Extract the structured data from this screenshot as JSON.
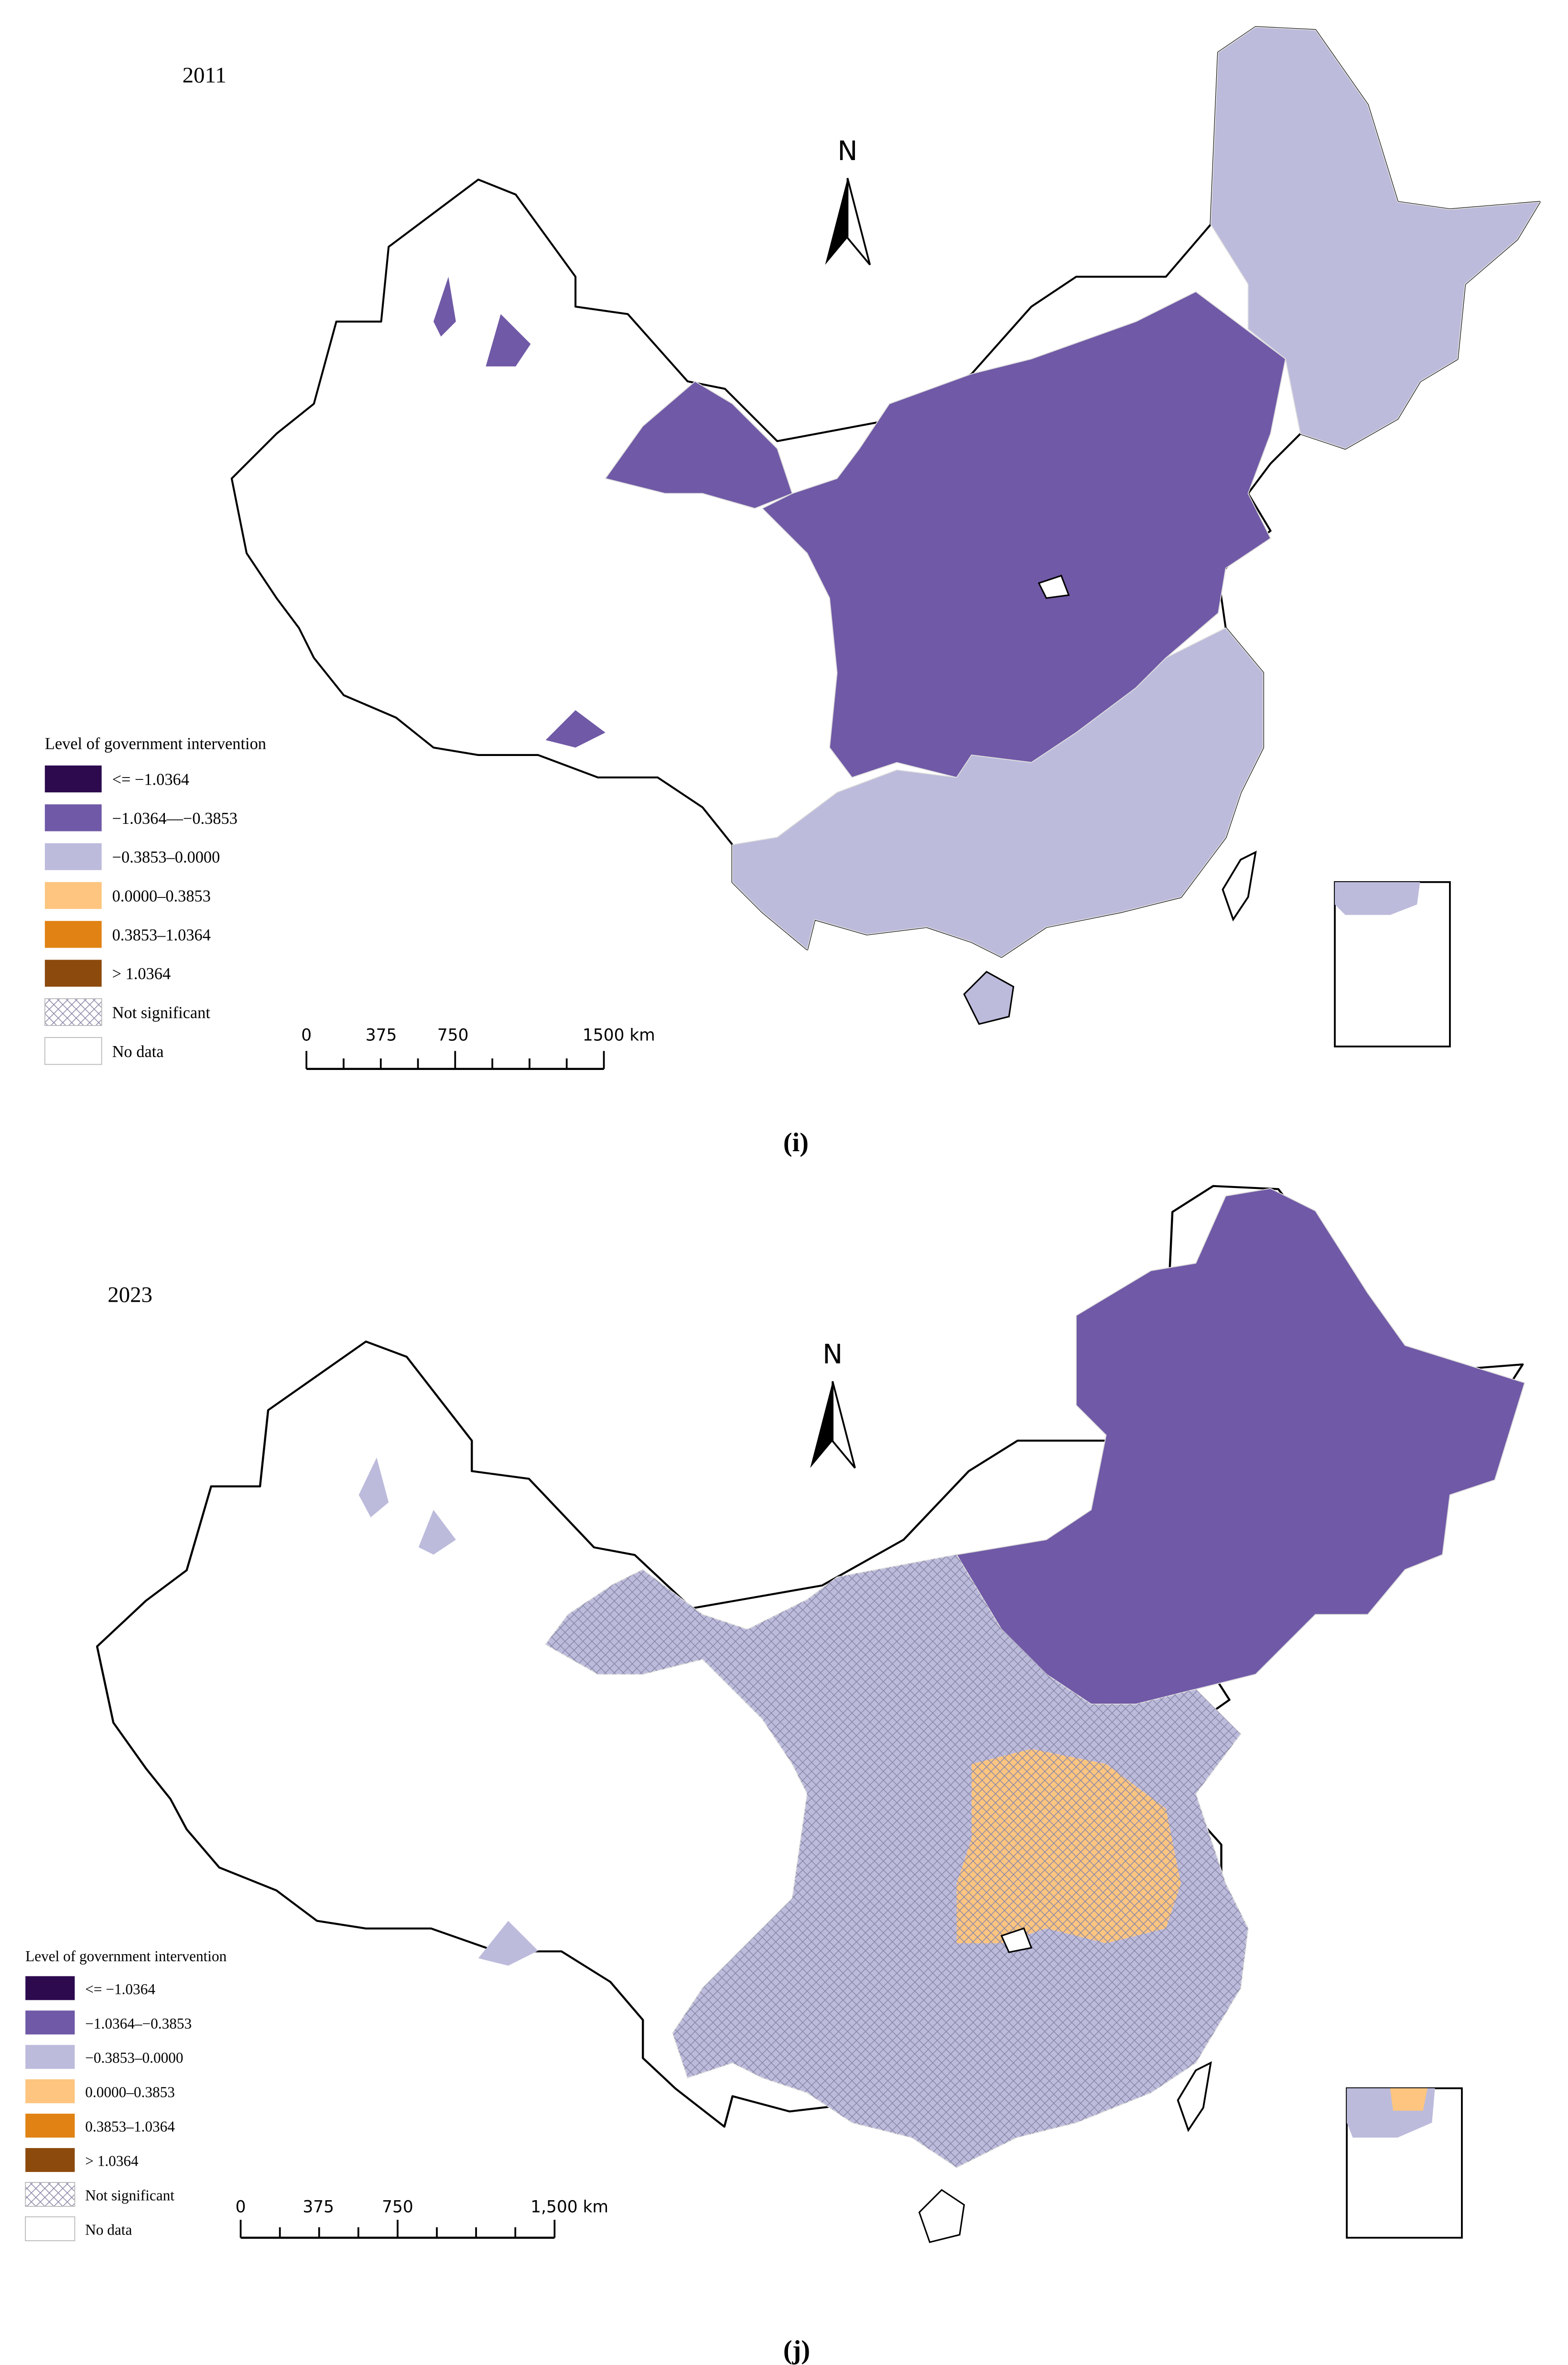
{
  "panels": [
    {
      "year": "2011",
      "caption": "(i)",
      "north": "N",
      "legend": {
        "title": "Level of government intervention",
        "items": [
          {
            "label": "<= −1.0364",
            "color": "#2d0a4e"
          },
          {
            "label": "−1.0364—−0.3853",
            "color": "#7059a6"
          },
          {
            "label": "−0.3853–0.0000",
            "color": "#bcbbdc"
          },
          {
            "label": "0.0000–0.3853",
            "color": "#fdc57f"
          },
          {
            "label": "0.3853–1.0364",
            "color": "#e08214"
          },
          {
            "label": "> 1.0364",
            "color": "#8c4a0c"
          },
          {
            "label": "Not significant",
            "color": "hatch"
          },
          {
            "label": "No data",
            "color": "#ffffff"
          }
        ]
      },
      "scale_bar": {
        "labels": [
          "0",
          "375",
          "750",
          "1500 km"
        ]
      }
    },
    {
      "year": "2023",
      "caption": "(j)",
      "north": "N",
      "legend": {
        "title": "Level of government intervention",
        "items": [
          {
            "label": "<= −1.0364",
            "color": "#2d0a4e"
          },
          {
            "label": "−1.0364–−0.3853",
            "color": "#7059a6"
          },
          {
            "label": "−0.3853–0.0000",
            "color": "#bcbbdc"
          },
          {
            "label": "0.0000–0.3853",
            "color": "#fdc57f"
          },
          {
            "label": "0.3853–1.0364",
            "color": "#e08214"
          },
          {
            "label": "> 1.0364",
            "color": "#8c4a0c"
          },
          {
            "label": "Not significant",
            "color": "hatch"
          },
          {
            "label": "No data",
            "color": "#ffffff"
          }
        ]
      },
      "scale_bar": {
        "labels": [
          "0",
          "375",
          "750",
          "1,500 km"
        ]
      }
    }
  ]
}
